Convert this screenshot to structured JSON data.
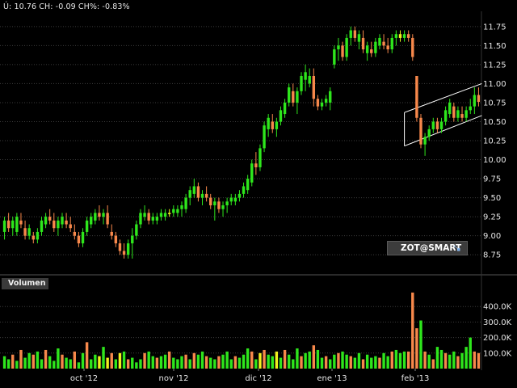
{
  "header": {
    "quote": "Ú: 10.76 CH: -0.09 CH%: -0.83%"
  },
  "volume_panel": {
    "label": "Volumen"
  },
  "badge": {
    "text": "ZOT@SMART",
    "icon": "zoom-icon"
  },
  "colors": {
    "up": "#2ee61c",
    "down": "#f7884b",
    "neutral": "#f0f01e",
    "grid": "#3d3d3d",
    "channel": "#ffffff"
  },
  "chart_data": [
    {
      "type": "candlestick",
      "title": "",
      "y_ticks": [
        8.75,
        9.0,
        9.25,
        9.5,
        9.75,
        10.0,
        10.25,
        10.5,
        10.75,
        11.0,
        11.25,
        11.5,
        11.75
      ],
      "y_tick_labels": [
        "8.75",
        "9.00",
        "9.25",
        "9.50",
        "9.75",
        "10.00",
        "10.25",
        "10.50",
        "10.75",
        "11.00",
        "11.25",
        "11.50",
        "11.75"
      ],
      "ylim": [
        8.55,
        11.95
      ],
      "x_tick_labels": [
        "oct '12",
        "nov '12",
        "dic '12",
        "ene '13",
        "feb '13"
      ],
      "last": 10.76,
      "change": -0.09,
      "change_pct": -0.83,
      "bars": [
        [
          9.05,
          9.25,
          8.95,
          9.2,
          "up"
        ],
        [
          9.2,
          9.3,
          9.05,
          9.1,
          "down"
        ],
        [
          9.1,
          9.25,
          9.0,
          9.2,
          "up"
        ],
        [
          9.05,
          9.3,
          9.0,
          9.25,
          "up"
        ],
        [
          9.2,
          9.3,
          9.1,
          9.15,
          "down"
        ],
        [
          9.1,
          9.2,
          8.95,
          9.0,
          "down"
        ],
        [
          9.0,
          9.15,
          8.95,
          9.1,
          "up"
        ],
        [
          9.0,
          9.05,
          8.9,
          8.95,
          "down"
        ],
        [
          8.95,
          9.1,
          8.9,
          9.05,
          "up"
        ],
        [
          9.05,
          9.25,
          9.0,
          9.2,
          "up"
        ],
        [
          9.15,
          9.3,
          9.1,
          9.25,
          "up"
        ],
        [
          9.25,
          9.35,
          9.15,
          9.2,
          "down"
        ],
        [
          9.2,
          9.3,
          9.05,
          9.1,
          "down"
        ],
        [
          9.1,
          9.25,
          9.0,
          9.2,
          "up"
        ],
        [
          9.15,
          9.3,
          9.1,
          9.25,
          "up"
        ],
        [
          9.2,
          9.3,
          9.1,
          9.15,
          "down"
        ],
        [
          9.15,
          9.25,
          9.05,
          9.1,
          "down"
        ],
        [
          9.05,
          9.15,
          8.95,
          9.0,
          "down"
        ],
        [
          9.0,
          9.05,
          8.85,
          8.9,
          "down"
        ],
        [
          8.9,
          9.1,
          8.85,
          9.05,
          "up"
        ],
        [
          9.05,
          9.25,
          9.0,
          9.2,
          "up"
        ],
        [
          9.15,
          9.3,
          9.1,
          9.25,
          "up"
        ],
        [
          9.2,
          9.35,
          9.15,
          9.3,
          "up"
        ],
        [
          9.3,
          9.4,
          9.2,
          9.25,
          "down"
        ],
        [
          9.25,
          9.35,
          9.15,
          9.3,
          "up"
        ],
        [
          9.3,
          9.4,
          9.1,
          9.15,
          "down"
        ],
        [
          9.05,
          9.15,
          8.95,
          9.0,
          "down"
        ],
        [
          9.0,
          9.05,
          8.85,
          8.9,
          "down"
        ],
        [
          8.9,
          8.95,
          8.75,
          8.8,
          "down"
        ],
        [
          8.8,
          8.9,
          8.7,
          8.75,
          "down"
        ],
        [
          8.75,
          8.95,
          8.7,
          8.9,
          "up"
        ],
        [
          8.9,
          9.1,
          8.7,
          9.0,
          "up"
        ],
        [
          9.0,
          9.2,
          8.95,
          9.15,
          "up"
        ],
        [
          9.15,
          9.35,
          9.1,
          9.3,
          "up"
        ],
        [
          9.25,
          9.4,
          9.2,
          9.3,
          "up"
        ],
        [
          9.3,
          9.35,
          9.15,
          9.2,
          "down"
        ],
        [
          9.2,
          9.3,
          9.15,
          9.25,
          "up"
        ],
        [
          9.2,
          9.3,
          9.15,
          9.25,
          "up"
        ],
        [
          9.25,
          9.35,
          9.2,
          9.3,
          "up"
        ],
        [
          9.25,
          9.35,
          9.2,
          9.3,
          "up"
        ],
        [
          9.3,
          9.35,
          9.25,
          9.3,
          "neutral"
        ],
        [
          9.3,
          9.4,
          9.25,
          9.35,
          "up"
        ],
        [
          9.3,
          9.4,
          9.25,
          9.35,
          "up"
        ],
        [
          9.35,
          9.45,
          9.25,
          9.4,
          "up"
        ],
        [
          9.35,
          9.55,
          9.3,
          9.5,
          "up"
        ],
        [
          9.5,
          9.65,
          9.4,
          9.6,
          "up"
        ],
        [
          9.55,
          9.75,
          9.5,
          9.65,
          "up"
        ],
        [
          9.65,
          9.7,
          9.45,
          9.5,
          "down"
        ],
        [
          9.5,
          9.6,
          9.4,
          9.55,
          "up"
        ],
        [
          9.55,
          9.65,
          9.45,
          9.5,
          "down"
        ],
        [
          9.5,
          9.55,
          9.35,
          9.4,
          "down"
        ],
        [
          9.4,
          9.5,
          9.2,
          9.45,
          "up"
        ],
        [
          9.45,
          9.5,
          9.3,
          9.35,
          "down"
        ],
        [
          9.35,
          9.45,
          9.25,
          9.4,
          "up"
        ],
        [
          9.4,
          9.5,
          9.3,
          9.45,
          "up"
        ],
        [
          9.45,
          9.55,
          9.4,
          9.5,
          "up"
        ],
        [
          9.45,
          9.55,
          9.4,
          9.5,
          "up"
        ],
        [
          9.5,
          9.6,
          9.45,
          9.55,
          "up"
        ],
        [
          9.55,
          9.7,
          9.5,
          9.65,
          "up"
        ],
        [
          9.6,
          9.8,
          9.55,
          9.75,
          "up"
        ],
        [
          9.7,
          10.0,
          9.65,
          9.95,
          "up"
        ],
        [
          9.95,
          10.1,
          9.8,
          9.9,
          "down"
        ],
        [
          9.9,
          10.2,
          9.85,
          10.15,
          "up"
        ],
        [
          10.15,
          10.5,
          10.1,
          10.45,
          "up"
        ],
        [
          10.4,
          10.6,
          10.3,
          10.55,
          "up"
        ],
        [
          10.5,
          10.6,
          10.35,
          10.4,
          "down"
        ],
        [
          10.4,
          10.55,
          10.3,
          10.5,
          "up"
        ],
        [
          10.5,
          10.7,
          10.45,
          10.65,
          "up"
        ],
        [
          10.6,
          10.8,
          10.55,
          10.75,
          "up"
        ],
        [
          10.75,
          11.0,
          10.7,
          10.95,
          "up"
        ],
        [
          10.9,
          11.0,
          10.7,
          10.75,
          "down"
        ],
        [
          10.75,
          10.95,
          10.6,
          10.9,
          "up"
        ],
        [
          10.9,
          11.15,
          10.85,
          11.1,
          "up"
        ],
        [
          11.05,
          11.25,
          10.9,
          11.15,
          "up"
        ],
        [
          11.0,
          11.2,
          10.95,
          11.1,
          "up"
        ],
        [
          11.1,
          11.2,
          10.7,
          10.8,
          "down"
        ],
        [
          10.8,
          10.85,
          10.65,
          10.7,
          "down"
        ],
        [
          10.7,
          10.8,
          10.65,
          10.75,
          "up"
        ],
        [
          10.75,
          10.85,
          10.7,
          10.8,
          "up"
        ],
        [
          10.75,
          10.95,
          10.65,
          10.9,
          "up"
        ],
        [
          11.25,
          11.5,
          11.2,
          11.45,
          "up"
        ],
        [
          11.45,
          11.6,
          11.3,
          11.5,
          "up"
        ],
        [
          11.5,
          11.55,
          11.3,
          11.35,
          "down"
        ],
        [
          11.35,
          11.65,
          11.3,
          11.6,
          "up"
        ],
        [
          11.6,
          11.75,
          11.5,
          11.7,
          "up"
        ],
        [
          11.7,
          11.75,
          11.55,
          11.6,
          "down"
        ],
        [
          11.55,
          11.7,
          11.45,
          11.65,
          "up"
        ],
        [
          11.6,
          11.7,
          11.4,
          11.45,
          "down"
        ],
        [
          11.4,
          11.55,
          11.3,
          11.5,
          "up"
        ],
        [
          11.45,
          11.55,
          11.35,
          11.4,
          "down"
        ],
        [
          11.4,
          11.6,
          11.35,
          11.55,
          "up"
        ],
        [
          11.5,
          11.65,
          11.45,
          11.6,
          "up"
        ],
        [
          11.55,
          11.65,
          11.45,
          11.5,
          "down"
        ],
        [
          11.5,
          11.6,
          11.4,
          11.45,
          "down"
        ],
        [
          11.45,
          11.65,
          11.4,
          11.6,
          "up"
        ],
        [
          11.6,
          11.7,
          11.5,
          11.65,
          "up"
        ],
        [
          11.65,
          11.7,
          11.55,
          11.6,
          "neutral"
        ],
        [
          11.6,
          11.7,
          11.55,
          11.65,
          "up"
        ],
        [
          11.65,
          11.7,
          11.55,
          11.6,
          "down"
        ],
        [
          11.6,
          11.65,
          11.3,
          11.35,
          "down"
        ],
        [
          11.1,
          11.1,
          10.5,
          10.55,
          "down"
        ],
        [
          10.55,
          10.6,
          10.15,
          10.2,
          "down"
        ],
        [
          10.2,
          10.35,
          10.05,
          10.3,
          "up"
        ],
        [
          10.3,
          10.45,
          10.25,
          10.4,
          "up"
        ],
        [
          10.4,
          10.55,
          10.35,
          10.5,
          "up"
        ],
        [
          10.5,
          10.55,
          10.35,
          10.4,
          "down"
        ],
        [
          10.4,
          10.55,
          10.35,
          10.5,
          "up"
        ],
        [
          10.5,
          10.7,
          10.45,
          10.65,
          "up"
        ],
        [
          10.6,
          10.8,
          10.55,
          10.75,
          "up"
        ],
        [
          10.7,
          10.75,
          10.5,
          10.55,
          "down"
        ],
        [
          10.55,
          10.7,
          10.5,
          10.65,
          "up"
        ],
        [
          10.6,
          10.7,
          10.5,
          10.55,
          "down"
        ],
        [
          10.55,
          10.7,
          10.5,
          10.65,
          "up"
        ],
        [
          10.65,
          10.8,
          10.6,
          10.7,
          "up"
        ],
        [
          10.7,
          10.95,
          10.6,
          10.85,
          "up"
        ],
        [
          10.85,
          10.95,
          10.7,
          10.76,
          "down"
        ]
      ]
    },
    {
      "type": "bar",
      "title": "Volumen",
      "y_ticks": [
        100000,
        200000,
        300000,
        400000
      ],
      "y_tick_labels": [
        "100.0K",
        "200.0K",
        "300.0K",
        "400.0K"
      ],
      "ylim": [
        0,
        500000
      ],
      "values": [
        80000,
        60000,
        90000,
        50000,
        120000,
        70000,
        100000,
        90000,
        110000,
        60000,
        120000,
        80000,
        50000,
        130000,
        90000,
        70000,
        60000,
        110000,
        40000,
        100000,
        170000,
        60000,
        90000,
        80000,
        140000,
        70000,
        100000,
        60000,
        100000,
        110000,
        60000,
        70000,
        40000,
        60000,
        100000,
        110000,
        80000,
        70000,
        80000,
        90000,
        110000,
        70000,
        60000,
        80000,
        90000,
        60000,
        100000,
        90000,
        110000,
        80000,
        70000,
        60000,
        80000,
        90000,
        110000,
        60000,
        80000,
        70000,
        90000,
        130000,
        110000,
        60000,
        100000,
        120000,
        90000,
        80000,
        110000,
        70000,
        120000,
        90000,
        60000,
        130000,
        80000,
        100000,
        110000,
        150000,
        120000,
        70000,
        80000,
        60000,
        90000,
        100000,
        110000,
        90000,
        80000,
        70000,
        100000,
        60000,
        90000,
        70000,
        80000,
        70000,
        100000,
        80000,
        110000,
        120000,
        100000,
        110000,
        110000,
        490000,
        260000,
        310000,
        110000,
        90000,
        60000,
        140000,
        120000,
        100000,
        90000,
        110000,
        80000,
        100000,
        140000,
        200000,
        110000,
        100000
      ],
      "colors": [
        "up",
        "up",
        "down",
        "up",
        "down",
        "up",
        "up",
        "down",
        "up",
        "up",
        "down",
        "up",
        "up",
        "up",
        "down",
        "up",
        "up",
        "down",
        "up",
        "up",
        "down",
        "up",
        "up",
        "neutral",
        "up",
        "neutral",
        "down",
        "up",
        "neutral",
        "up",
        "down",
        "up",
        "up",
        "up",
        "down",
        "up",
        "up",
        "down",
        "up",
        "up",
        "down",
        "up",
        "up",
        "up",
        "down",
        "up",
        "down",
        "up",
        "up",
        "down",
        "up",
        "up",
        "down",
        "up",
        "up",
        "up",
        "down",
        "up",
        "up",
        "up",
        "down",
        "up",
        "neutral",
        "down",
        "up",
        "up",
        "neutral",
        "up",
        "down",
        "up",
        "up",
        "up",
        "down",
        "up",
        "up",
        "down",
        "up",
        "up",
        "down",
        "up",
        "up",
        "down",
        "up",
        "up",
        "down",
        "up",
        "up",
        "down",
        "up",
        "up",
        "up",
        "down",
        "up",
        "up",
        "down",
        "up",
        "up",
        "up",
        "down",
        "down",
        "down",
        "up",
        "down",
        "up",
        "down",
        "up",
        "up",
        "down",
        "up",
        "up",
        "down",
        "up",
        "up",
        "up",
        "down",
        "down"
      ],
      "x_tick_labels": [
        "oct '12",
        "nov '12",
        "dic '12",
        "ene '13",
        "feb '13"
      ]
    }
  ]
}
